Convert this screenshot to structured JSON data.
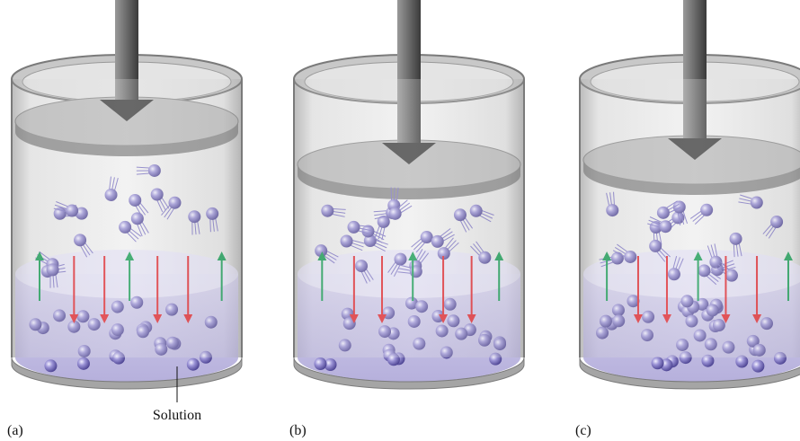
{
  "labels": {
    "solution": "Solution",
    "panels": [
      "(a)",
      "(b)",
      "(c)"
    ]
  }
}
